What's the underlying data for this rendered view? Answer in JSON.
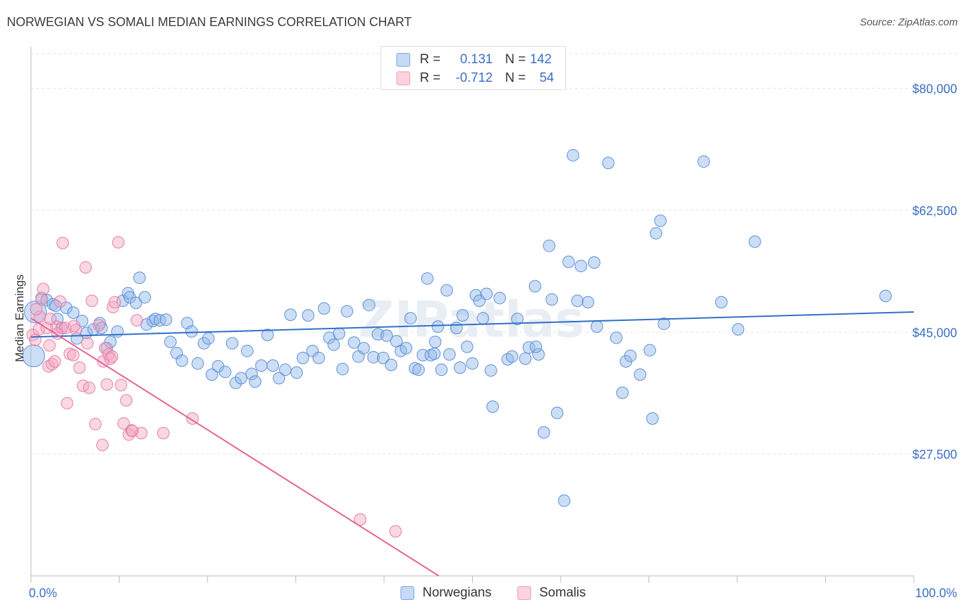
{
  "title": "NORWEGIAN VS SOMALI MEDIAN EARNINGS CORRELATION CHART",
  "source": "Source: ZipAtlas.com",
  "watermark": "ZIPatlas",
  "legend": {
    "rows": [
      {
        "r_label": "R =",
        "r_value": "0.131",
        "n_label": "N =",
        "n_value": "142",
        "color": "#8fb6e8"
      },
      {
        "r_label": "R =",
        "r_value": "-0.712",
        "n_label": "N =",
        "n_value": "54",
        "color": "#f2a7c0"
      }
    ],
    "bottom": [
      "Norwegians",
      "Somalis"
    ]
  },
  "chart_data": {
    "type": "scatter",
    "title": "NORWEGIAN VS SOMALI MEDIAN EARNINGS CORRELATION CHART",
    "xlabel": "",
    "ylabel": "Median Earnings",
    "xlim": [
      0,
      100
    ],
    "ylim": [
      10000,
      85000
    ],
    "x_tick_labels": [
      "0.0%",
      "100.0%"
    ],
    "y_ticks": [
      27500,
      45000,
      62500,
      80000
    ],
    "y_tick_labels": [
      "$27,500",
      "$45,000",
      "$62,500",
      "$80,000"
    ],
    "grid": true,
    "series": [
      {
        "name": "Norwegians",
        "color": "#8fb6e8",
        "stroke": "#5d8fd8",
        "trend": {
          "x": [
            0,
            100
          ],
          "y": [
            44300,
            47900
          ]
        },
        "points": [
          [
            0.3,
            41600
          ],
          [
            0.5,
            47900
          ],
          [
            1.2,
            49900
          ],
          [
            1.8,
            49600
          ],
          [
            2.5,
            49000
          ],
          [
            2.8,
            48800
          ],
          [
            3.0,
            46900
          ],
          [
            3.5,
            45600
          ],
          [
            4.0,
            48500
          ],
          [
            4.8,
            47800
          ],
          [
            5.2,
            44100
          ],
          [
            5.8,
            46600
          ],
          [
            6.3,
            44900
          ],
          [
            7.1,
            45400
          ],
          [
            7.8,
            46300
          ],
          [
            8.0,
            45600
          ],
          [
            8.6,
            42700
          ],
          [
            9.0,
            43600
          ],
          [
            9.8,
            45100
          ],
          [
            10.4,
            49500
          ],
          [
            11.0,
            50600
          ],
          [
            11.2,
            50000
          ],
          [
            11.9,
            49200
          ],
          [
            12.3,
            52800
          ],
          [
            12.9,
            50000
          ],
          [
            13.1,
            46100
          ],
          [
            13.8,
            46600
          ],
          [
            14.1,
            46900
          ],
          [
            14.6,
            46700
          ],
          [
            15.3,
            46800
          ],
          [
            15.8,
            43600
          ],
          [
            16.5,
            42000
          ],
          [
            17.1,
            40900
          ],
          [
            17.7,
            46300
          ],
          [
            18.2,
            45100
          ],
          [
            18.9,
            40500
          ],
          [
            19.6,
            43400
          ],
          [
            20.1,
            44100
          ],
          [
            20.5,
            38900
          ],
          [
            21.2,
            40100
          ],
          [
            22.0,
            39300
          ],
          [
            22.8,
            43400
          ],
          [
            23.2,
            37700
          ],
          [
            23.8,
            38400
          ],
          [
            24.5,
            42300
          ],
          [
            25.0,
            39000
          ],
          [
            25.4,
            37900
          ],
          [
            26.1,
            40200
          ],
          [
            26.8,
            44600
          ],
          [
            27.4,
            40200
          ],
          [
            28.1,
            38400
          ],
          [
            28.8,
            39600
          ],
          [
            29.4,
            47500
          ],
          [
            30.1,
            39200
          ],
          [
            30.8,
            41300
          ],
          [
            31.4,
            47400
          ],
          [
            31.9,
            42300
          ],
          [
            32.6,
            41300
          ],
          [
            33.2,
            48400
          ],
          [
            33.8,
            44200
          ],
          [
            34.3,
            43200
          ],
          [
            34.9,
            44800
          ],
          [
            35.3,
            39700
          ],
          [
            35.8,
            48000
          ],
          [
            36.6,
            43500
          ],
          [
            37.1,
            41500
          ],
          [
            37.7,
            42700
          ],
          [
            38.3,
            48900
          ],
          [
            38.8,
            41400
          ],
          [
            39.3,
            44700
          ],
          [
            39.9,
            41300
          ],
          [
            40.3,
            44500
          ],
          [
            40.8,
            40300
          ],
          [
            41.4,
            43700
          ],
          [
            41.9,
            42300
          ],
          [
            42.5,
            42700
          ],
          [
            43.0,
            47000
          ],
          [
            43.5,
            39800
          ],
          [
            43.9,
            39600
          ],
          [
            44.4,
            41700
          ],
          [
            44.9,
            52700
          ],
          [
            45.3,
            41700
          ],
          [
            45.8,
            43600
          ],
          [
            46.1,
            45800
          ],
          [
            46.5,
            39600
          ],
          [
            47.1,
            51000
          ],
          [
            47.4,
            41800
          ],
          [
            48.2,
            45600
          ],
          [
            48.6,
            39900
          ],
          [
            48.9,
            47400
          ],
          [
            49.4,
            42900
          ],
          [
            50.0,
            40500
          ],
          [
            50.4,
            50300
          ],
          [
            50.8,
            49500
          ],
          [
            51.2,
            47000
          ],
          [
            51.6,
            50500
          ],
          [
            52.1,
            39500
          ],
          [
            53.1,
            49900
          ],
          [
            54.0,
            41100
          ],
          [
            54.5,
            41500
          ],
          [
            55.1,
            46900
          ],
          [
            52.3,
            34300
          ],
          [
            56.0,
            41200
          ],
          [
            56.4,
            42800
          ],
          [
            57.1,
            51600
          ],
          [
            57.5,
            41800
          ],
          [
            58.1,
            30600
          ],
          [
            58.7,
            57400
          ],
          [
            59.0,
            49700
          ],
          [
            59.6,
            33400
          ],
          [
            60.4,
            20800
          ],
          [
            60.9,
            55100
          ],
          [
            61.4,
            70400
          ],
          [
            61.9,
            49500
          ],
          [
            62.3,
            54500
          ],
          [
            63.1,
            49300
          ],
          [
            63.8,
            55000
          ],
          [
            64.1,
            45800
          ],
          [
            65.4,
            69300
          ],
          [
            66.3,
            44200
          ],
          [
            67.0,
            36300
          ],
          [
            67.4,
            40800
          ],
          [
            67.9,
            41600
          ],
          [
            69.0,
            38900
          ],
          [
            70.1,
            42400
          ],
          [
            70.4,
            32600
          ],
          [
            70.8,
            59200
          ],
          [
            71.3,
            61000
          ],
          [
            71.7,
            46200
          ],
          [
            76.2,
            69500
          ],
          [
            78.2,
            49300
          ],
          [
            80.1,
            45400
          ],
          [
            82.0,
            58000
          ],
          [
            96.8,
            50200
          ],
          [
            45.7,
            41900
          ],
          [
            57.2,
            42900
          ]
        ]
      },
      {
        "name": "Somalis",
        "color": "#f2a7c0",
        "stroke": "#e77ea3",
        "trend": {
          "x": [
            0,
            46.2
          ],
          "y": [
            47000,
            10000
          ]
        },
        "points": [
          [
            0.2,
            44600
          ],
          [
            0.5,
            43900
          ],
          [
            0.9,
            45400
          ],
          [
            1.2,
            49700
          ],
          [
            1.4,
            51200
          ],
          [
            1.8,
            45600
          ],
          [
            2.0,
            40100
          ],
          [
            2.1,
            43100
          ],
          [
            2.4,
            40400
          ],
          [
            2.7,
            40800
          ],
          [
            2.9,
            45800
          ],
          [
            3.3,
            49400
          ],
          [
            3.5,
            45600
          ],
          [
            3.6,
            57800
          ],
          [
            3.9,
            45600
          ],
          [
            4.1,
            34800
          ],
          [
            4.4,
            41900
          ],
          [
            4.8,
            41700
          ],
          [
            5.1,
            45300
          ],
          [
            5.5,
            39900
          ],
          [
            5.9,
            37300
          ],
          [
            6.2,
            54300
          ],
          [
            6.6,
            37000
          ],
          [
            6.9,
            49500
          ],
          [
            7.3,
            31800
          ],
          [
            7.7,
            46000
          ],
          [
            8.1,
            28800
          ],
          [
            8.2,
            40800
          ],
          [
            8.4,
            42700
          ],
          [
            8.6,
            37500
          ],
          [
            8.8,
            41800
          ],
          [
            9.0,
            41200
          ],
          [
            9.3,
            48600
          ],
          [
            9.5,
            49300
          ],
          [
            9.9,
            57900
          ],
          [
            10.2,
            37400
          ],
          [
            10.5,
            31900
          ],
          [
            10.8,
            35200
          ],
          [
            11.1,
            30300
          ],
          [
            11.4,
            30900
          ],
          [
            12.0,
            46700
          ],
          [
            12.5,
            30500
          ],
          [
            15.0,
            30500
          ],
          [
            18.3,
            32600
          ],
          [
            37.3,
            18100
          ],
          [
            41.3,
            16400
          ],
          [
            1.0,
            47200
          ],
          [
            2.2,
            46900
          ],
          [
            4.9,
            45900
          ],
          [
            6.4,
            43400
          ],
          [
            9.2,
            41500
          ],
          [
            11.5,
            30800
          ],
          [
            3.0,
            44800
          ],
          [
            0.6,
            48300
          ]
        ]
      }
    ]
  }
}
